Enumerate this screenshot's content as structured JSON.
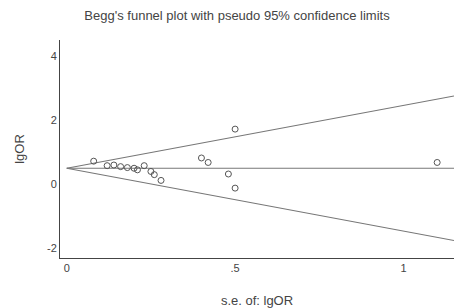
{
  "chart_data": {
    "type": "scatter",
    "title": "Begg's funnel plot with pseudo 95% confidence limits",
    "xlabel": "s.e. of: lgOR",
    "ylabel": "lgOR",
    "xlim": [
      -0.02,
      1.15
    ],
    "ylim": [
      -2.3,
      4.5
    ],
    "xticks": [
      0,
      {
        "value": 0.5,
        "label": ".5"
      },
      1
    ],
    "yticks": [
      -2,
      0,
      2,
      4
    ],
    "grid": false,
    "series": [
      {
        "type": "line",
        "color": "#777777",
        "line_style": "solid",
        "x": [
          0,
          1.15
        ],
        "values": [
          0.5,
          0.5
        ]
      },
      {
        "type": "line",
        "color": "#777777",
        "line_style": "solid",
        "x": [
          0,
          1.15
        ],
        "values": [
          0.5,
          2.754
        ]
      },
      {
        "type": "line",
        "color": "#777777",
        "line_style": "solid",
        "x": [
          0,
          1.15
        ],
        "values": [
          0.5,
          -1.754
        ]
      },
      {
        "type": "scatter",
        "color": "#555555",
        "marker": "circle-open",
        "x": [
          0.08,
          0.12,
          0.14,
          0.16,
          0.18,
          0.2,
          0.21,
          0.23,
          0.25,
          0.26,
          0.28,
          0.4,
          0.42,
          0.48,
          0.5,
          0.5,
          1.1
        ],
        "values": [
          0.72,
          0.58,
          0.6,
          0.55,
          0.52,
          0.5,
          0.45,
          0.58,
          0.4,
          0.3,
          0.12,
          0.82,
          0.68,
          0.32,
          -0.12,
          1.72,
          0.68
        ]
      }
    ]
  }
}
